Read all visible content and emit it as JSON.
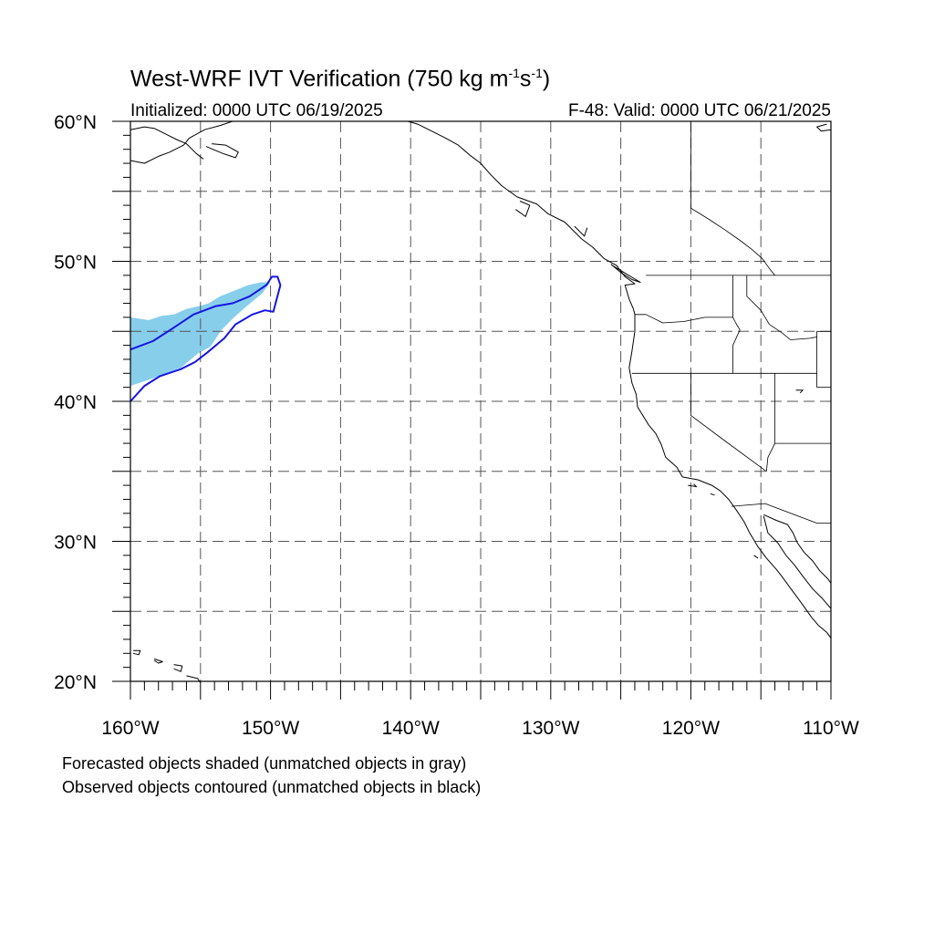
{
  "header": {
    "title_main": "West-WRF IVT Verification (750 kg m",
    "title_exp1": "-1",
    "title_mid": "s",
    "title_exp2": "-1",
    "title_end": ")",
    "init": "Initialized: 0000 UTC 06/19/2025",
    "valid": "F-48: Valid: 0000 UTC 06/21/2025"
  },
  "footer": {
    "line1": "Forecasted objects shaded (unmatched objects in gray)",
    "line2": "Observed objects contoured (unmatched objects in black)"
  },
  "map_data": {
    "lon_range": [
      -160,
      -110
    ],
    "lat_range": [
      20,
      60
    ],
    "x_ticks": [
      {
        "value": -160,
        "label": "160°W"
      },
      {
        "value": -150,
        "label": "150°W"
      },
      {
        "value": -140,
        "label": "140°W"
      },
      {
        "value": -130,
        "label": "130°W"
      },
      {
        "value": -120,
        "label": "120°W"
      },
      {
        "value": -110,
        "label": "110°W"
      }
    ],
    "y_ticks": [
      {
        "value": 20,
        "label": "20°N"
      },
      {
        "value": 30,
        "label": "30°N"
      },
      {
        "value": 40,
        "label": "40°N"
      },
      {
        "value": 50,
        "label": "50°N"
      },
      {
        "value": 60,
        "label": "60°N"
      }
    ],
    "grid": true,
    "grid_spacing_deg": 5,
    "colors": {
      "forecast_fill": "#87ceeb",
      "observed_contour": "#1414e6",
      "coastline": "#000000",
      "grid": "#555555"
    },
    "forecast_object": [
      [
        -160,
        46
      ],
      [
        -158.7,
        45.8
      ],
      [
        -157.8,
        46.1
      ],
      [
        -156.9,
        46.2
      ],
      [
        -156,
        46.6
      ],
      [
        -155.1,
        46.8
      ],
      [
        -154.4,
        47
      ],
      [
        -153.6,
        47.5
      ],
      [
        -152.6,
        47.9
      ],
      [
        -151.6,
        48.3
      ],
      [
        -150.7,
        48.5
      ],
      [
        -150,
        48.5
      ],
      [
        -150.6,
        47.7
      ],
      [
        -151.7,
        46.8
      ],
      [
        -152.6,
        46
      ],
      [
        -153.5,
        45.1
      ],
      [
        -154.3,
        43.9
      ],
      [
        -155.2,
        43.4
      ],
      [
        -156.4,
        42.4
      ],
      [
        -157.2,
        42.1
      ],
      [
        -158.5,
        41.6
      ],
      [
        -160,
        41.1
      ]
    ],
    "observed_object": [
      [
        -160,
        43.7
      ],
      [
        -158.4,
        44.3
      ],
      [
        -157,
        45.2
      ],
      [
        -155.5,
        46.2
      ],
      [
        -153.9,
        46.8
      ],
      [
        -152.7,
        47
      ],
      [
        -151.5,
        47.5
      ],
      [
        -150.3,
        48.3
      ],
      [
        -149.9,
        48.9
      ],
      [
        -149.5,
        48.9
      ],
      [
        -149.3,
        48.3
      ],
      [
        -149.8,
        46.4
      ],
      [
        -150.4,
        46.5
      ],
      [
        -151.3,
        46.2
      ],
      [
        -152.5,
        45.5
      ],
      [
        -153.3,
        44.5
      ],
      [
        -154.5,
        43.5
      ],
      [
        -155.4,
        42.8
      ],
      [
        -156.4,
        42.3
      ],
      [
        -157.9,
        41.8
      ],
      [
        -159,
        41.1
      ],
      [
        -160,
        40
      ]
    ],
    "coastline": [
      [
        -140.2,
        60
      ],
      [
        -139.5,
        59.8
      ],
      [
        -138.5,
        59.3
      ],
      [
        -137.5,
        58.8
      ],
      [
        -136.6,
        58.3
      ],
      [
        -135.8,
        57.6
      ],
      [
        -135,
        57
      ],
      [
        -134.3,
        56.2
      ],
      [
        -133.5,
        55.4
      ],
      [
        -132.4,
        54.6
      ],
      [
        -131,
        54.1
      ],
      [
        -130.2,
        53.4
      ],
      [
        -129,
        52.8
      ],
      [
        -127.8,
        51.6
      ],
      [
        -127,
        51
      ],
      [
        -126.2,
        50.2
      ],
      [
        -125.3,
        49.7
      ],
      [
        -124.7,
        48.9
      ],
      [
        -124,
        48.4
      ],
      [
        -124.7,
        48.3
      ],
      [
        -124.4,
        47.3
      ],
      [
        -124.1,
        46.6
      ],
      [
        -124,
        46.2
      ],
      [
        -124,
        45
      ],
      [
        -124.2,
        43.6
      ],
      [
        -124.4,
        42.4
      ],
      [
        -124.2,
        41.3
      ],
      [
        -123.9,
        40.5
      ],
      [
        -123.8,
        39.6
      ],
      [
        -123,
        38.3
      ],
      [
        -122.5,
        37.7
      ],
      [
        -122.1,
        36.9
      ],
      [
        -121.8,
        36
      ],
      [
        -121,
        35.3
      ],
      [
        -120.6,
        34.6
      ],
      [
        -119.5,
        34.4
      ],
      [
        -118.5,
        34
      ],
      [
        -117.9,
        33.6
      ],
      [
        -117.3,
        33
      ],
      [
        -116.8,
        32.3
      ],
      [
        -116.2,
        31.4
      ],
      [
        -115.8,
        30.6
      ],
      [
        -115.2,
        29.6
      ],
      [
        -114.6,
        28.8
      ],
      [
        -113.9,
        28
      ],
      [
        -113.5,
        27.5
      ],
      [
        -113,
        26.8
      ],
      [
        -112.4,
        26
      ],
      [
        -111.9,
        25.3
      ],
      [
        -111.4,
        24.6
      ],
      [
        -110.9,
        24
      ],
      [
        -110.3,
        23.5
      ],
      [
        -110,
        23.1
      ]
    ],
    "gulf_coast": [
      [
        -114.8,
        31.8
      ],
      [
        -114.5,
        30.6
      ],
      [
        -113.8,
        29.9
      ],
      [
        -113.2,
        29
      ],
      [
        -112.6,
        28.3
      ],
      [
        -112,
        27.5
      ],
      [
        -111.3,
        26.6
      ],
      [
        -110.6,
        25.9
      ],
      [
        -110,
        25.2
      ]
    ],
    "mainland_coast": [
      [
        -114.8,
        31.9
      ],
      [
        -113.9,
        31.5
      ],
      [
        -113.1,
        31.2
      ],
      [
        -112.7,
        30.6
      ],
      [
        -112.4,
        29.9
      ],
      [
        -111.9,
        29.2
      ],
      [
        -111.3,
        28.6
      ],
      [
        -110.8,
        27.9
      ],
      [
        -110.2,
        27.3
      ],
      [
        -110,
        27
      ]
    ],
    "borders": [
      [
        [
          -123.2,
          49
        ],
        [
          -110,
          49
        ]
      ],
      [
        [
          -117,
          49
        ],
        [
          -117,
          46
        ],
        [
          -116.8,
          45.6
        ],
        [
          -116.5,
          45.1
        ],
        [
          -117,
          44
        ],
        [
          -117,
          42
        ]
      ],
      [
        [
          -124.2,
          42
        ],
        [
          -111,
          42
        ]
      ],
      [
        [
          -124,
          46.2
        ],
        [
          -123.2,
          46.2
        ],
        [
          -122,
          45.6
        ],
        [
          -120.5,
          45.7
        ],
        [
          -119,
          46
        ],
        [
          -117,
          46
        ]
      ],
      [
        [
          -120,
          42
        ],
        [
          -120,
          39
        ],
        [
          -117.6,
          37.2
        ],
        [
          -114.6,
          35
        ]
      ],
      [
        [
          -114,
          42
        ],
        [
          -114,
          37
        ],
        [
          -114.5,
          36
        ],
        [
          -114.6,
          35
        ]
      ],
      [
        [
          -114,
          37
        ],
        [
          -110,
          37
        ]
      ],
      [
        [
          -117.1,
          32.5
        ],
        [
          -114.7,
          32.7
        ],
        [
          -111,
          31.3
        ],
        [
          -110,
          31.3
        ]
      ],
      [
        [
          -111,
          45
        ],
        [
          -110,
          45
        ]
      ],
      [
        [
          -111,
          45
        ],
        [
          -111,
          41
        ],
        [
          -110,
          41
        ]
      ],
      [
        [
          -116,
          49
        ],
        [
          -116,
          47.5
        ],
        [
          -115,
          46.5
        ],
        [
          -114.4,
          45.5
        ],
        [
          -113.5,
          44.9
        ],
        [
          -112.9,
          44.4
        ],
        [
          -111.5,
          44.5
        ],
        [
          -111,
          44.6
        ]
      ],
      [
        [
          -120,
          60
        ],
        [
          -120,
          53.8
        ],
        [
          -118.7,
          53
        ],
        [
          -117.5,
          52.2
        ],
        [
          -116.5,
          51.5
        ],
        [
          -115.7,
          50.9
        ],
        [
          -114.9,
          50.2
        ],
        [
          -114.4,
          49.5
        ],
        [
          -114,
          49
        ]
      ]
    ],
    "islands": [
      [
        [
          -159.8,
          22.2
        ],
        [
          -159.3,
          22.2
        ],
        [
          -159.4,
          21.9
        ],
        [
          -159.8,
          22
        ]
      ],
      [
        [
          -158.3,
          21.6
        ],
        [
          -157.7,
          21.4
        ],
        [
          -158,
          21.3
        ],
        [
          -158.3,
          21.5
        ]
      ],
      [
        [
          -156.9,
          21.2
        ],
        [
          -156.3,
          21.1
        ],
        [
          -156.4,
          20.7
        ],
        [
          -156.9,
          20.9
        ]
      ],
      [
        [
          -156,
          20.4
        ],
        [
          -155.2,
          20.2
        ],
        [
          -155,
          19.9
        ]
      ],
      [
        [
          -125.6,
          49.7
        ],
        [
          -124.6,
          49.1
        ],
        [
          -123.6,
          48.5
        ],
        [
          -124.2,
          48.7
        ],
        [
          -125,
          49.2
        ],
        [
          -125.7,
          49.8
        ]
      ],
      [
        [
          -128.3,
          52.5
        ],
        [
          -127.6,
          51.8
        ],
        [
          -127.4,
          52.4
        ]
      ],
      [
        [
          -132.5,
          53.7
        ],
        [
          -131.8,
          53.2
        ],
        [
          -131.5,
          54
        ],
        [
          -132.2,
          54.3
        ]
      ],
      [
        [
          -120.2,
          34
        ],
        [
          -119.6,
          33.9
        ],
        [
          -119.8,
          34.1
        ]
      ],
      [
        [
          -118.6,
          33.4
        ],
        [
          -118.3,
          33.3
        ]
      ],
      [
        [
          -115.5,
          29
        ],
        [
          -115.2,
          28.8
        ]
      ],
      [
        [
          -112.5,
          40.8
        ],
        [
          -112,
          40.8
        ],
        [
          -112.2,
          40.6
        ]
      ]
    ],
    "alaska_coast": [
      [
        [
          -160,
          59.4
        ],
        [
          -159,
          59.6
        ],
        [
          -158.3,
          59.5
        ],
        [
          -157.5,
          59.1
        ],
        [
          -156.7,
          58.7
        ],
        [
          -156,
          58.4
        ],
        [
          -155.3,
          57.7
        ],
        [
          -154.8,
          57.3
        ]
      ],
      [
        [
          -160,
          57.2
        ],
        [
          -159,
          57
        ],
        [
          -158,
          57.5
        ],
        [
          -157.2,
          57.8
        ],
        [
          -156.2,
          58.3
        ],
        [
          -155.8,
          58.8
        ],
        [
          -154.7,
          59.4
        ],
        [
          -153.6,
          59.7
        ],
        [
          -152.7,
          60
        ]
      ],
      [
        [
          -154.6,
          58.2
        ],
        [
          -153.4,
          57.7
        ],
        [
          -152.5,
          57.4
        ],
        [
          -152.3,
          57.8
        ],
        [
          -153.2,
          58.3
        ],
        [
          -154.2,
          58.4
        ]
      ],
      [
        [
          -110,
          59.4
        ],
        [
          -110.7,
          59.3
        ],
        [
          -111,
          59.6
        ],
        [
          -110.3,
          59.8
        ]
      ]
    ]
  }
}
